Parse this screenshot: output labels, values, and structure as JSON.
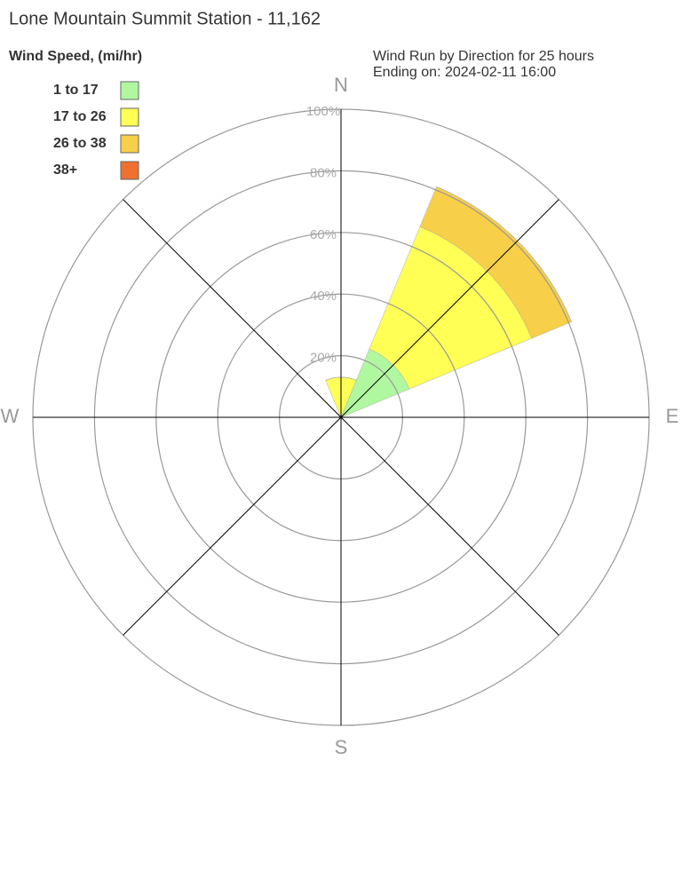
{
  "chart_data": {
    "type": "wind-rose",
    "title": "Lone Mountain Summit Station - 11,162",
    "legend_title": "Wind Speed, (mi/hr)",
    "subtitle": [
      "Wind Run by Direction for 25 hours",
      "Ending on: 2024-02-11 16:00"
    ],
    "categories": [
      "N",
      null,
      "E",
      null,
      "S",
      null,
      "W",
      null
    ],
    "series": [
      {
        "name": "1 to 17",
        "color": "#b0f8a0",
        "values": [
          0,
          24,
          0,
          0,
          0,
          0,
          0,
          0
        ]
      },
      {
        "name": "17 to 26",
        "color": "#ffff55",
        "values": [
          13,
          43,
          0,
          0,
          0,
          0,
          0,
          0
        ]
      },
      {
        "name": "26 to 38",
        "color": "#f7cf48",
        "values": [
          0,
          14,
          0,
          0,
          0,
          0,
          0,
          0
        ]
      },
      {
        "name": "38+",
        "color": "#f07030",
        "values": [
          0,
          0,
          0,
          0,
          0,
          0,
          0,
          0
        ]
      }
    ],
    "rlim": [
      0,
      100
    ],
    "rticks": [
      {
        "value": 20,
        "label": "20%"
      },
      {
        "value": 40,
        "label": "40%"
      },
      {
        "value": 60,
        "label": "60%"
      },
      {
        "value": 80,
        "label": "80%"
      },
      {
        "value": 100,
        "label": "100%"
      }
    ]
  }
}
